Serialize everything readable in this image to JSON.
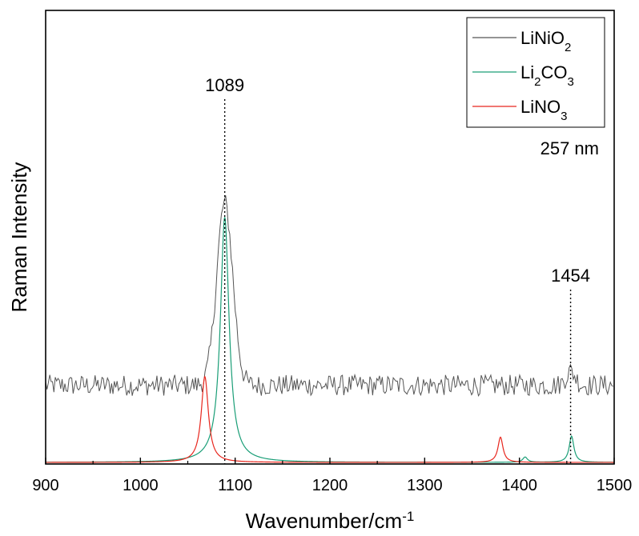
{
  "chart_data": {
    "type": "line",
    "xlabel": "Wavenumber/cm",
    "xlabel_sup": "-1",
    "ylabel": "Raman Intensity",
    "xlim": [
      900,
      1500
    ],
    "ylim": [
      0,
      1
    ],
    "x_ticks": [
      900,
      1000,
      1100,
      1200,
      1300,
      1400,
      1500
    ],
    "x_tick_labels": [
      "900",
      "1000",
      "1100",
      "1200",
      "1300",
      "1400",
      "1500"
    ],
    "legend_position": "top-right",
    "series": [
      {
        "name": "LiNiO2",
        "label_parts": [
          [
            "LiNiO",
            "base"
          ],
          [
            "2",
            "sub"
          ]
        ],
        "color": "#555555",
        "style": "noisy",
        "baseline": 0.22,
        "noise": 0.03,
        "peaks": [
          {
            "center": 1089,
            "height": 0.52,
            "width": 8.5
          },
          {
            "center": 1454,
            "height": 0.04,
            "width": 5
          }
        ]
      },
      {
        "name": "Li2CO3",
        "label_parts": [
          [
            "Li",
            "base"
          ],
          [
            "2",
            "sub"
          ],
          [
            "CO",
            "base"
          ],
          [
            "3",
            "sub"
          ]
        ],
        "color": "#1a9e77",
        "style": "smooth",
        "baseline": 0.0,
        "peaks": [
          {
            "center": 1089,
            "height": 0.7,
            "width": 5.5,
            "shape": "lorentz"
          },
          {
            "center": 1406,
            "height": 0.015,
            "width": 3,
            "shape": "lorentz"
          },
          {
            "center": 1455,
            "height": 0.075,
            "width": 3,
            "shape": "lorentz"
          }
        ]
      },
      {
        "name": "LiNO3",
        "label_parts": [
          [
            "LiNO",
            "base"
          ],
          [
            "3",
            "sub"
          ]
        ],
        "color": "#e8261d",
        "style": "smooth",
        "baseline": 0.0,
        "peaks": [
          {
            "center": 1068,
            "height": 0.245,
            "width": 4.5,
            "shape": "lorentz"
          },
          {
            "center": 1380,
            "height": 0.072,
            "width": 3.2,
            "shape": "lorentz"
          }
        ]
      }
    ],
    "annotations": [
      {
        "text": "1089",
        "x": 1089
      },
      {
        "text": "1454",
        "x": 1454
      }
    ],
    "inset_label": "257 nm"
  }
}
